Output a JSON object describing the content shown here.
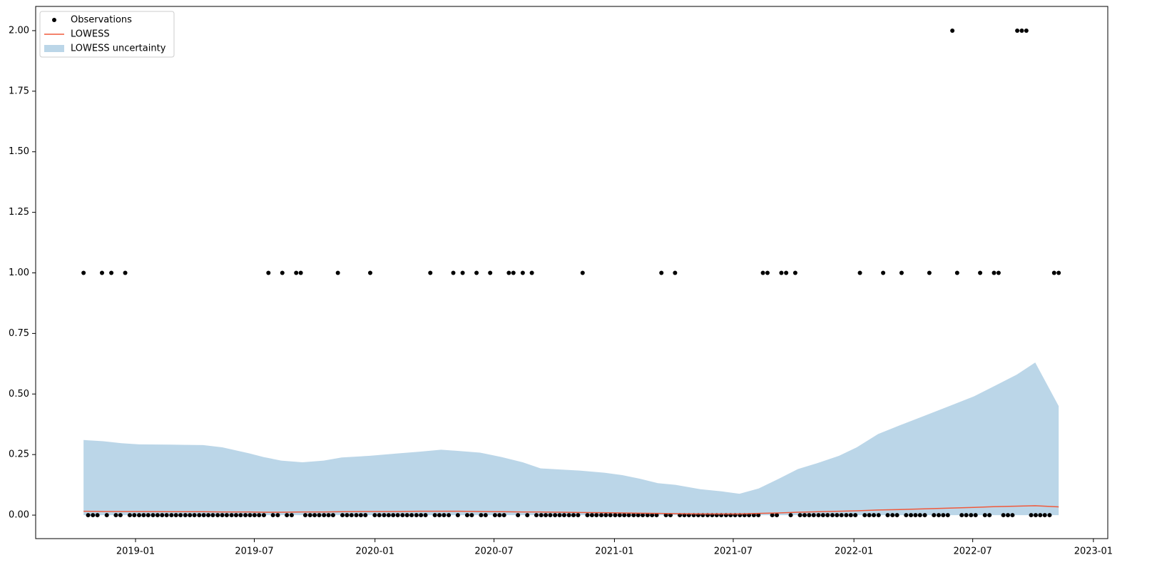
{
  "chart_data": {
    "type": "scatter",
    "xlim": [
      2018.583,
      2023.06
    ],
    "ylim": [
      -0.097,
      2.1
    ],
    "xticks": [
      {
        "value": 2019.0,
        "label": "2019-01"
      },
      {
        "value": 2019.496,
        "label": "2019-07"
      },
      {
        "value": 2020.0,
        "label": "2020-01"
      },
      {
        "value": 2020.497,
        "label": "2020-07"
      },
      {
        "value": 2021.0,
        "label": "2021-01"
      },
      {
        "value": 2021.496,
        "label": "2021-07"
      },
      {
        "value": 2022.0,
        "label": "2022-01"
      },
      {
        "value": 2022.496,
        "label": "2022-07"
      },
      {
        "value": 2023.0,
        "label": "2023-01"
      }
    ],
    "yticks": [
      {
        "value": 0,
        "label": "0.00"
      },
      {
        "value": 0.25,
        "label": "0.25"
      },
      {
        "value": 0.5,
        "label": "0.50"
      },
      {
        "value": 0.75,
        "label": "0.75"
      },
      {
        "value": 1,
        "label": "1.00"
      },
      {
        "value": 1.25,
        "label": "1.25"
      },
      {
        "value": 1.5,
        "label": "1.50"
      },
      {
        "value": 1.75,
        "label": "1.75"
      },
      {
        "value": 2,
        "label": "2.00"
      }
    ],
    "grid": false,
    "legend": "upper left",
    "series": [
      {
        "name": "Observations",
        "type": "scatter",
        "color": "#000000",
        "x": [
          2018.783,
          2018.802,
          2018.822,
          2018.841,
          2018.86,
          2018.88,
          2018.899,
          2018.918,
          2018.937,
          2018.957,
          2018.976,
          2018.995,
          2019.015,
          2019.034,
          2019.053,
          2019.073,
          2019.092,
          2019.111,
          2019.13,
          2019.15,
          2019.169,
          2019.188,
          2019.208,
          2019.227,
          2019.246,
          2019.266,
          2019.285,
          2019.304,
          2019.323,
          2019.343,
          2019.362,
          2019.381,
          2019.401,
          2019.42,
          2019.439,
          2019.459,
          2019.478,
          2019.497,
          2019.516,
          2019.536,
          2019.555,
          2019.574,
          2019.594,
          2019.613,
          2019.632,
          2019.652,
          2019.671,
          2019.69,
          2019.709,
          2019.729,
          2019.748,
          2019.767,
          2019.787,
          2019.806,
          2019.825,
          2019.845,
          2019.864,
          2019.883,
          2019.902,
          2019.922,
          2019.941,
          2019.96,
          2019.98,
          2019.999,
          2020.018,
          2020.038,
          2020.057,
          2020.076,
          2020.095,
          2020.115,
          2020.134,
          2020.153,
          2020.173,
          2020.192,
          2020.211,
          2020.231,
          2020.25,
          2020.269,
          2020.288,
          2020.308,
          2020.327,
          2020.346,
          2020.366,
          2020.385,
          2020.404,
          2020.424,
          2020.443,
          2020.462,
          2020.481,
          2020.501,
          2020.52,
          2020.539,
          2020.559,
          2020.578,
          2020.597,
          2020.617,
          2020.636,
          2020.655,
          2020.674,
          2020.694,
          2020.713,
          2020.732,
          2020.752,
          2020.771,
          2020.79,
          2020.81,
          2020.829,
          2020.848,
          2020.867,
          2020.887,
          2020.906,
          2020.925,
          2020.945,
          2020.964,
          2020.983,
          2021.003,
          2021.022,
          2021.041,
          2021.06,
          2021.08,
          2021.099,
          2021.118,
          2021.138,
          2021.157,
          2021.176,
          2021.196,
          2021.215,
          2021.234,
          2021.253,
          2021.273,
          2021.292,
          2021.311,
          2021.331,
          2021.35,
          2021.369,
          2021.389,
          2021.408,
          2021.427,
          2021.446,
          2021.466,
          2021.485,
          2021.504,
          2021.524,
          2021.543,
          2021.562,
          2021.582,
          2021.601,
          2021.62,
          2021.639,
          2021.659,
          2021.678,
          2021.697,
          2021.717,
          2021.736,
          2021.755,
          2021.775,
          2021.794,
          2021.813,
          2021.832,
          2021.852,
          2021.871,
          2021.89,
          2021.91,
          2021.929,
          2021.948,
          2021.968,
          2021.987,
          2022.006,
          2022.025,
          2022.045,
          2022.064,
          2022.083,
          2022.103,
          2022.122,
          2022.141,
          2022.161,
          2022.18,
          2022.199,
          2022.218,
          2022.238,
          2022.257,
          2022.276,
          2022.296,
          2022.315,
          2022.334,
          2022.354,
          2022.373,
          2022.392,
          2022.411,
          2022.431,
          2022.45,
          2022.469,
          2022.489,
          2022.508,
          2022.527,
          2022.547,
          2022.566,
          2022.585,
          2022.604,
          2022.624,
          2022.643,
          2022.662,
          2022.682,
          2022.701,
          2022.72,
          2022.74,
          2022.759,
          2022.778,
          2022.797,
          2022.817,
          2022.836,
          2022.855
        ],
        "values": [
          1,
          0,
          0,
          0,
          1,
          0,
          1,
          0,
          0,
          1,
          0,
          0,
          0,
          0,
          0,
          0,
          0,
          0,
          0,
          0,
          0,
          0,
          0,
          0,
          0,
          0,
          0,
          0,
          0,
          0,
          0,
          0,
          0,
          0,
          0,
          0,
          0,
          0,
          0,
          0,
          1,
          0,
          0,
          1,
          0,
          0,
          1,
          1,
          0,
          0,
          0,
          0,
          0,
          0,
          0,
          1,
          0,
          0,
          0,
          0,
          0,
          0,
          1,
          0,
          0,
          0,
          0,
          0,
          0,
          0,
          0,
          0,
          0,
          0,
          0,
          1,
          0,
          0,
          0,
          0,
          1,
          0,
          1,
          0,
          0,
          1,
          0,
          0,
          1,
          0,
          0,
          0,
          1,
          1,
          0,
          1,
          0,
          1,
          0,
          0,
          0,
          0,
          0,
          0,
          0,
          0,
          0,
          0,
          1,
          0,
          0,
          0,
          0,
          0,
          0,
          0,
          0,
          0,
          0,
          0,
          0,
          0,
          0,
          0,
          0,
          1,
          0,
          0,
          1,
          0,
          0,
          0,
          0,
          0,
          0,
          0,
          0,
          0,
          0,
          0,
          0,
          0,
          0,
          0,
          0,
          0,
          0,
          1,
          1,
          0,
          0,
          1,
          1,
          0,
          1,
          0,
          0,
          0,
          0,
          0,
          0,
          0,
          0,
          0,
          0,
          0,
          0,
          0,
          1,
          0,
          0,
          0,
          0,
          1,
          0,
          0,
          0,
          1,
          0,
          0,
          0,
          0,
          0,
          1,
          0,
          0,
          0,
          0,
          2,
          1,
          0,
          0,
          0,
          0,
          1,
          0,
          0,
          1,
          1,
          0,
          0,
          0,
          2,
          2,
          2,
          0,
          0,
          0,
          0,
          0,
          1,
          1
        ]
      },
      {
        "name": "LOWESS",
        "type": "line",
        "color": "#f05a3c",
        "x": [
          2018.783,
          2018.866,
          2018.941,
          2019.015,
          2019.148,
          2019.282,
          2019.362,
          2019.475,
          2019.534,
          2019.608,
          2019.697,
          2019.786,
          2019.861,
          2019.979,
          2020.098,
          2020.187,
          2020.276,
          2020.35,
          2020.439,
          2020.528,
          2020.617,
          2020.691,
          2020.78,
          2020.855,
          2020.958,
          2021.033,
          2021.107,
          2021.181,
          2021.255,
          2021.359,
          2021.448,
          2021.522,
          2021.602,
          2021.686,
          2021.766,
          2021.849,
          2021.938,
          2022.012,
          2022.101,
          2022.19,
          2022.294,
          2022.398,
          2022.501,
          2022.591,
          2022.68,
          2022.757,
          2022.855
        ],
        "values": [
          0.016,
          0.015,
          0.015,
          0.015,
          0.014,
          0.014,
          0.013,
          0.013,
          0.012,
          0.012,
          0.013,
          0.013,
          0.014,
          0.015,
          0.015,
          0.016,
          0.016,
          0.016,
          0.015,
          0.014,
          0.013,
          0.013,
          0.012,
          0.011,
          0.01,
          0.009,
          0.008,
          0.007,
          0.006,
          0.005,
          0.005,
          0.005,
          0.007,
          0.009,
          0.012,
          0.014,
          0.016,
          0.018,
          0.021,
          0.023,
          0.026,
          0.029,
          0.032,
          0.035,
          0.037,
          0.039,
          0.034
        ]
      }
    ],
    "band": {
      "name": "LOWESS uncertainty",
      "color": "#1f77b4",
      "opacity": 0.3,
      "upper": [
        0.31,
        0.305,
        0.297,
        0.292,
        0.291,
        0.289,
        0.28,
        0.255,
        0.24,
        0.225,
        0.218,
        0.225,
        0.238,
        0.245,
        0.255,
        0.262,
        0.27,
        0.265,
        0.258,
        0.24,
        0.218,
        0.193,
        0.188,
        0.184,
        0.175,
        0.165,
        0.15,
        0.132,
        0.125,
        0.107,
        0.098,
        0.088,
        0.11,
        0.15,
        0.19,
        0.215,
        0.245,
        0.28,
        0.335,
        0.37,
        0.41,
        0.45,
        0.49,
        0.535,
        0.58,
        0.63,
        0.45
      ],
      "lower": [
        0,
        0,
        0,
        0,
        0,
        0,
        0,
        0,
        0,
        0,
        0,
        0,
        0,
        0,
        0,
        0,
        0,
        0,
        0,
        0,
        0,
        0,
        0,
        0,
        0,
        0,
        0,
        0,
        0,
        0,
        0,
        0,
        0,
        0,
        0,
        0,
        0,
        0,
        0,
        0,
        0,
        0,
        0,
        0,
        0,
        0,
        0
      ]
    }
  }
}
